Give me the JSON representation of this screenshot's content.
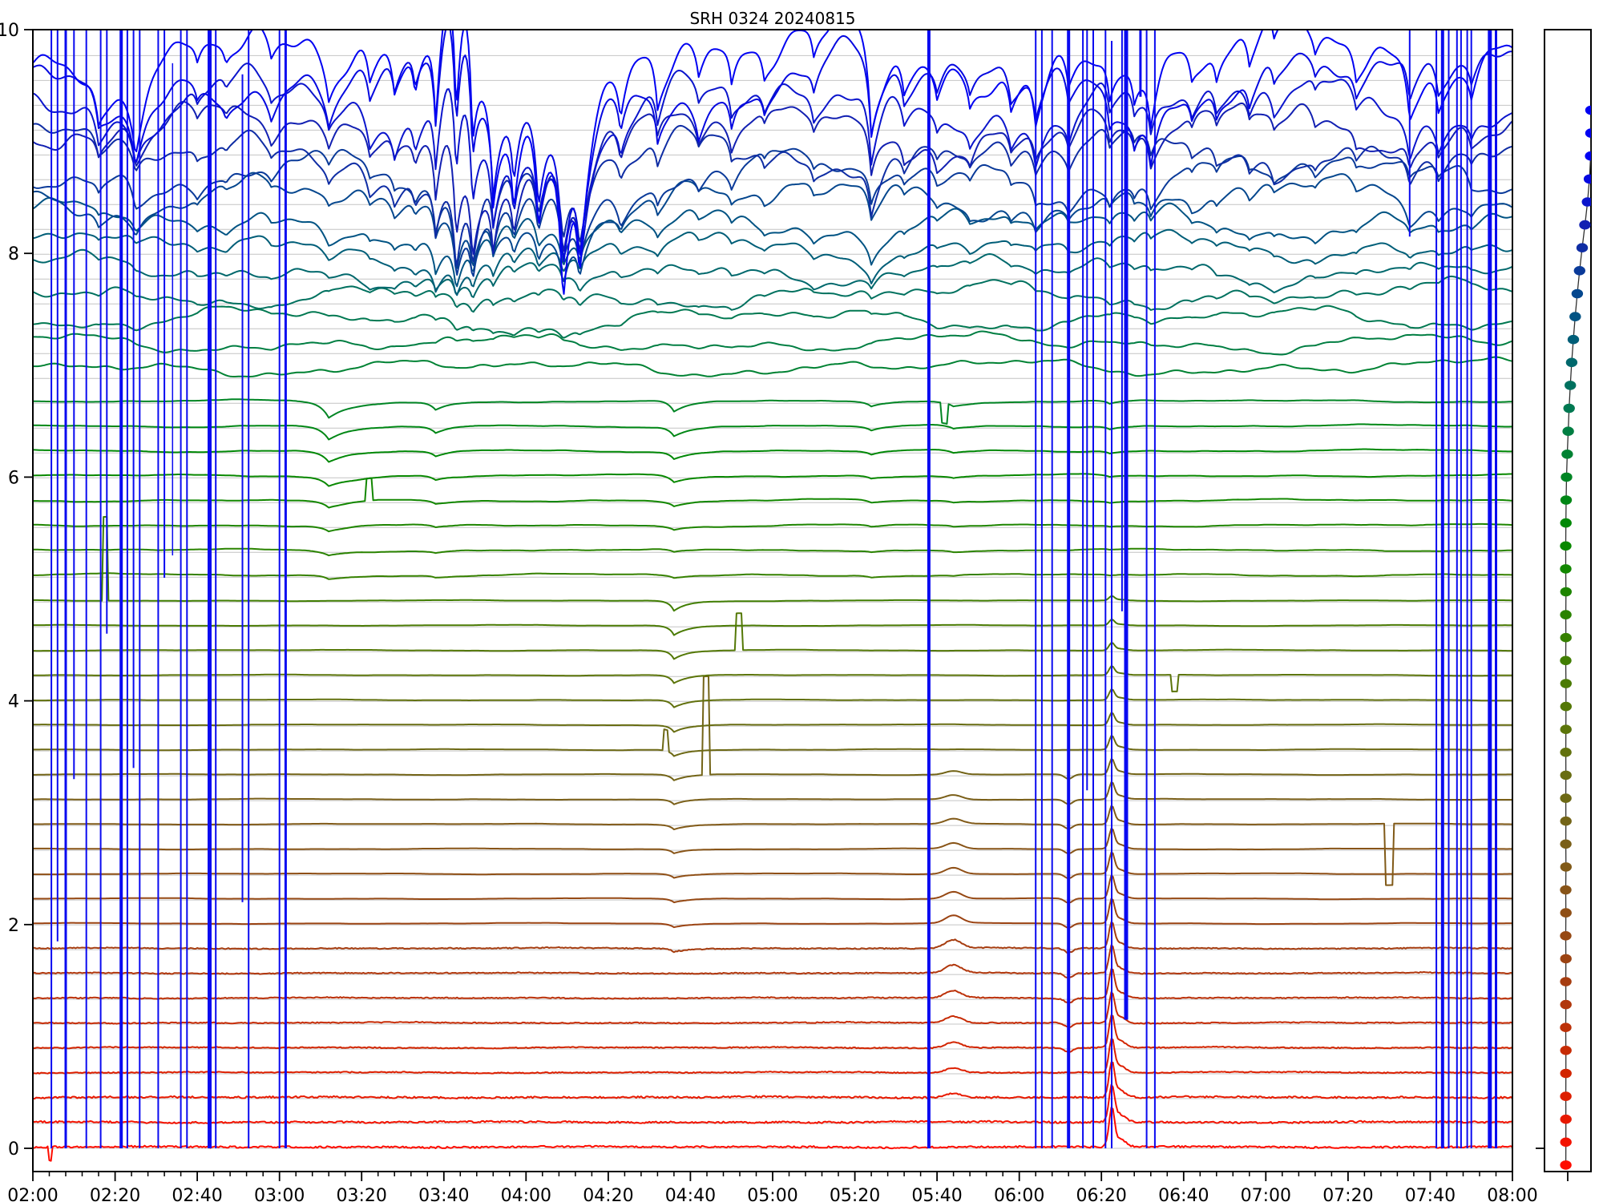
{
  "title": "SRH 0324 20240815",
  "chart_data": {
    "type": "line",
    "title": "SRH 0324 20240815",
    "x_axis": {
      "start_label": "02:00",
      "end_label": "08:00",
      "duration_min": 360,
      "major_tick_min": 20,
      "minor_tick_min": 4,
      "tick_labels": [
        "02:00",
        "02:20",
        "02:40",
        "03:00",
        "03:20",
        "03:40",
        "04:00",
        "04:20",
        "04:40",
        "05:00",
        "05:20",
        "05:40",
        "06:00",
        "06:20",
        "06:40",
        "07:00",
        "07:20",
        "07:40",
        "08:00"
      ]
    },
    "y_axis": {
      "min": 0,
      "max": 10,
      "tick_values": [
        0,
        2,
        4,
        6,
        8,
        10
      ],
      "tick_labels": [
        "0",
        "2",
        "4",
        "6",
        "8",
        "10"
      ]
    },
    "grid_color": "#c4c4c4",
    "frame_color": "#000000",
    "traces": {
      "count": 45,
      "baseline_step": 0.222,
      "colors": [
        "#fe0d00",
        "#f31300",
        "#e81900",
        "#dd1f00",
        "#d22500",
        "#c72b04",
        "#bc3108",
        "#b1370c",
        "#a63d10",
        "#9b4312",
        "#964914",
        "#8f4f16",
        "#885417",
        "#815a18",
        "#7a5f18",
        "#736417",
        "#6d6915",
        "#686d12",
        "#62710e",
        "#5c750a",
        "#547806",
        "#4b7b04",
        "#417e02",
        "#368100",
        "#2a8300",
        "#1e8500",
        "#128700",
        "#088800",
        "#008806",
        "#008715",
        "#008524",
        "#008233",
        "#007e42",
        "#007851",
        "#00715f",
        "#00686c",
        "#005e78",
        "#015383",
        "#05478e",
        "#0a3a99",
        "#0f2da4",
        "#1220b2",
        "#0b15cc",
        "#0508e0",
        "#0102f2"
      ]
    },
    "bands": {
      "low_max_index": 22,
      "mid_max_index": 30
    },
    "top_dips": [
      [
        16,
        0.45,
        2.6
      ],
      [
        25,
        0.75,
        3.5
      ],
      [
        40,
        0.3,
        2.5
      ],
      [
        47,
        0.25,
        2.5
      ],
      [
        58,
        0.3,
        2.5
      ],
      [
        72,
        0.5,
        3
      ],
      [
        82,
        0.45,
        2.5
      ],
      [
        88,
        0.5,
        2.5
      ],
      [
        93,
        0.5,
        2
      ],
      [
        98,
        1.2,
        2
      ],
      [
        103,
        2.0,
        2.4
      ],
      [
        107,
        1.5,
        2
      ],
      [
        112,
        1.1,
        2
      ],
      [
        117,
        0.9,
        2
      ],
      [
        123,
        1.1,
        2.2
      ],
      [
        129,
        1.7,
        2.8
      ],
      [
        133,
        1.2,
        2
      ],
      [
        143,
        0.6,
        2.4
      ],
      [
        152,
        0.55,
        2
      ],
      [
        162,
        0.35,
        2
      ],
      [
        170,
        0.45,
        2
      ],
      [
        178,
        0.3,
        2
      ],
      [
        190,
        0.35,
        2
      ],
      [
        204,
        0.95,
        2.2
      ],
      [
        212,
        0.35,
        2
      ],
      [
        220,
        0.3,
        2
      ],
      [
        228,
        0.3,
        2
      ],
      [
        238,
        0.35,
        2
      ],
      [
        244,
        0.55,
        2.4
      ],
      [
        252,
        0.35,
        2
      ],
      [
        262,
        0.45,
        2
      ],
      [
        268,
        0.4,
        2
      ],
      [
        272,
        0.55,
        2
      ],
      [
        282,
        0.3,
        2
      ],
      [
        288,
        0.35,
        2
      ],
      [
        296,
        0.35,
        2
      ],
      [
        302,
        0.3,
        2
      ],
      [
        312,
        0.25,
        2
      ],
      [
        322,
        0.3,
        2
      ],
      [
        335,
        0.5,
        2
      ],
      [
        342,
        0.35,
        2
      ],
      [
        350,
        0.3,
        2
      ]
    ],
    "surge": {
      "t": 104,
      "width": 6,
      "amp": 1.9,
      "from_index": 41
    },
    "mid_dips": [
      [
        72,
        1.0,
        4
      ],
      [
        98,
        0.5,
        3
      ],
      [
        156,
        0.7,
        3
      ],
      [
        204,
        0.35,
        3
      ],
      [
        224,
        0.25,
        3
      ],
      [
        262,
        0.2,
        2
      ]
    ],
    "low_features": {
      "vdip": {
        "t": 156,
        "w": 2.2
      },
      "bump": {
        "t": 224,
        "w": 2.8
      },
      "notch": {
        "t": 252,
        "w": 1.4
      },
      "spike": {
        "t": 262.5,
        "w": 0.9
      }
    },
    "pulses": [
      {
        "trace": 26,
        "t": 82,
        "h": 0.2,
        "w": 1.6
      },
      {
        "trace": 22,
        "t": 17.5,
        "h": 0.75,
        "w": 1.3
      },
      {
        "trace": 16,
        "t": 154,
        "h": 0.19,
        "w": 1.2
      },
      {
        "trace": 15,
        "t": 164,
        "h": 0.88,
        "w": 1.6
      },
      {
        "trace": 20,
        "t": 172,
        "h": 0.33,
        "w": 1.6
      },
      {
        "trace": 30,
        "t": 222,
        "h": -0.18,
        "w": 1.6
      },
      {
        "trace": 19,
        "t": 278,
        "h": -0.15,
        "w": 1.6
      },
      {
        "trace": 13,
        "t": 330,
        "h": -0.55,
        "w": 2.2
      },
      {
        "trace": 0,
        "t": 4.2,
        "h": -0.12,
        "w": 1.0
      }
    ],
    "rfi": {
      "color": "#0a0af0",
      "lines": [
        [
          4.5,
          10,
          0,
          2
        ],
        [
          6,
          10,
          1.85,
          2
        ],
        [
          8,
          10,
          0,
          3
        ],
        [
          10,
          10,
          3.3,
          2
        ],
        [
          13,
          10,
          0,
          2
        ],
        [
          16.5,
          10,
          0,
          2
        ],
        [
          18,
          10,
          4.6,
          2
        ],
        [
          21.5,
          10,
          0,
          4
        ],
        [
          23,
          10,
          0,
          2
        ],
        [
          24.5,
          10,
          3.4,
          2
        ],
        [
          26,
          10,
          0,
          2
        ],
        [
          30.5,
          10,
          0,
          2
        ],
        [
          32,
          10,
          5.1,
          2
        ],
        [
          34,
          9.7,
          5.3,
          1.5
        ],
        [
          36,
          10,
          0,
          2
        ],
        [
          37.5,
          10,
          0,
          2
        ],
        [
          43,
          10,
          0,
          5
        ],
        [
          44.5,
          10,
          0,
          2
        ],
        [
          51,
          9.6,
          2.2,
          2
        ],
        [
          52.5,
          10,
          0,
          2
        ],
        [
          60,
          10,
          0,
          2
        ],
        [
          61.5,
          10,
          0,
          3
        ],
        [
          218,
          10,
          0,
          4
        ],
        [
          244,
          10,
          0,
          2
        ],
        [
          245.5,
          10,
          0,
          2
        ],
        [
          248,
          10,
          0,
          2
        ],
        [
          252,
          10,
          0,
          4
        ],
        [
          255.5,
          10,
          0,
          2
        ],
        [
          256.5,
          10,
          3.2,
          2
        ],
        [
          258,
          10,
          0,
          2
        ],
        [
          261,
          10,
          0,
          2
        ],
        [
          262.5,
          9.9,
          0,
          2
        ],
        [
          265,
          10,
          4.8,
          2
        ],
        [
          266,
          10,
          1.15,
          5
        ],
        [
          269.5,
          10,
          9.4,
          3
        ],
        [
          271,
          10,
          0,
          2
        ],
        [
          273,
          10,
          0,
          2
        ],
        [
          335,
          10,
          8.15,
          2
        ],
        [
          341.5,
          10,
          0,
          2
        ],
        [
          343,
          10,
          0,
          4
        ],
        [
          344.5,
          10,
          0,
          2
        ],
        [
          346.5,
          10,
          0,
          2
        ],
        [
          347.5,
          10,
          0,
          2
        ],
        [
          349,
          10,
          0,
          2
        ],
        [
          350,
          10,
          0,
          2
        ],
        [
          354.5,
          10,
          0,
          5
        ],
        [
          356,
          10,
          0,
          3
        ]
      ]
    },
    "aux_panel": {
      "dot_v0": -0.15,
      "dot_step": 0.205,
      "dot_count": 47,
      "line_color": "#303030",
      "base_xfrac": 0.46,
      "xfracs_top": [
        0.465,
        0.475,
        0.49,
        0.51,
        0.53,
        0.555,
        0.585,
        0.62,
        0.66,
        0.705,
        0.755,
        0.81,
        0.87,
        0.925,
        0.968,
        0.993
      ]
    }
  }
}
